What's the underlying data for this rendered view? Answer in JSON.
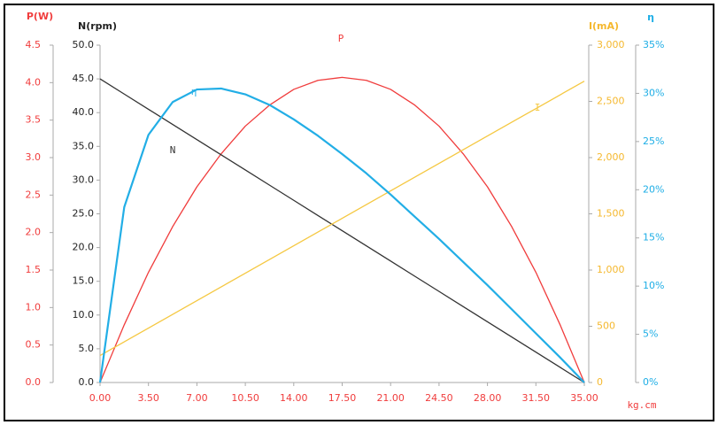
{
  "chart_data": {
    "type": "line",
    "x_label": "kg.cm",
    "x": [
      0,
      1.75,
      3.5,
      5.25,
      7,
      8.75,
      10.5,
      12.25,
      14,
      15.75,
      17.5,
      19.25,
      21,
      22.75,
      24.5,
      26.25,
      28,
      29.75,
      31.5,
      33.25,
      35
    ],
    "xlim": [
      0,
      35
    ],
    "xticks": [
      {
        "value": 0,
        "label": "0.00"
      },
      {
        "value": 3.5,
        "label": "3.50"
      },
      {
        "value": 7,
        "label": "7.00"
      },
      {
        "value": 10.5,
        "label": "10.50"
      },
      {
        "value": 14,
        "label": "14.00"
      },
      {
        "value": 17.5,
        "label": "17.50"
      },
      {
        "value": 21,
        "label": "21.00"
      },
      {
        "value": 24.5,
        "label": "24.50"
      },
      {
        "value": 28,
        "label": "28.00"
      },
      {
        "value": 31.5,
        "label": "31.50"
      },
      {
        "value": 35,
        "label": "35.00"
      }
    ],
    "x_color": "#f03c3c",
    "y_axes": [
      {
        "title": "P(W)",
        "color": "#f03c3c",
        "ylim": [
          0,
          4.5
        ],
        "yticks": [
          {
            "value": 0,
            "label": "0.0"
          },
          0.5,
          {
            "value": 1,
            "label": "1.0"
          },
          1.5,
          {
            "value": 2,
            "label": "2.0"
          },
          2.5,
          {
            "value": 3,
            "label": "3.0"
          },
          3.5,
          {
            "value": 4,
            "label": "4.0"
          },
          4.5
        ]
      },
      {
        "title": "N(rpm)",
        "color": "#222222",
        "ylim": [
          0,
          50
        ],
        "yticks": [
          {
            "value": 0,
            "label": "0.0"
          },
          {
            "value": 5,
            "label": "5.0"
          },
          {
            "value": 10,
            "label": "10.0"
          },
          {
            "value": 15,
            "label": "15.0"
          },
          {
            "value": 20,
            "label": "20.0"
          },
          {
            "value": 25,
            "label": "25.0"
          },
          {
            "value": 30,
            "label": "30.0"
          },
          {
            "value": 35,
            "label": "35.0"
          },
          {
            "value": 40,
            "label": "40.0"
          },
          {
            "value": 45,
            "label": "45.0"
          },
          {
            "value": 50,
            "label": "50.0"
          }
        ]
      },
      {
        "title": "I(mA)",
        "color": "#f5b82e",
        "ylim": [
          0,
          3000
        ],
        "yticks": [
          0,
          500,
          {
            "value": 1000,
            "label": "1,000"
          },
          {
            "value": 1500,
            "label": "1,500"
          },
          {
            "value": 2000,
            "label": "2,000"
          },
          {
            "value": 2500,
            "label": "2,500"
          },
          {
            "value": 3000,
            "label": "3,000"
          }
        ]
      },
      {
        "title": "η",
        "color": "#1eaee6",
        "ylim": [
          0,
          35
        ],
        "yticks": [
          {
            "value": 0,
            "label": "0%"
          },
          {
            "value": 5,
            "label": "5%"
          },
          {
            "value": 10,
            "label": "10%"
          },
          {
            "value": 15,
            "label": "15%"
          },
          {
            "value": 20,
            "label": "20%"
          },
          {
            "value": 25,
            "label": "25%"
          },
          {
            "value": 30,
            "label": "30%"
          },
          {
            "value": 35,
            "label": "35%"
          }
        ]
      }
    ],
    "series": [
      {
        "name": "P",
        "color": "#f03c3c",
        "axis": 0,
        "values": [
          0,
          0.77,
          1.47,
          2.08,
          2.61,
          3.05,
          3.42,
          3.7,
          3.91,
          4.03,
          4.07,
          4.03,
          3.91,
          3.7,
          3.42,
          3.05,
          2.61,
          2.08,
          1.47,
          0.77,
          0
        ]
      },
      {
        "name": "N",
        "color": "#333333",
        "axis": 1,
        "values": [
          45,
          42.75,
          40.5,
          38.25,
          36,
          33.75,
          31.5,
          29.25,
          27,
          24.75,
          22.5,
          20.25,
          18,
          15.75,
          13.5,
          11.25,
          9,
          6.75,
          4.5,
          2.25,
          0
        ]
      },
      {
        "name": "I",
        "color": "#f5c842",
        "axis": 2,
        "values": [
          240,
          362,
          484,
          606,
          728,
          850,
          972,
          1094,
          1216,
          1338,
          1460,
          1582,
          1704,
          1826,
          1948,
          2070,
          2192,
          2314,
          2436,
          2558,
          2680
        ]
      },
      {
        "name": "η",
        "color": "#22aee6",
        "axis": 3,
        "values": [
          0,
          18.2,
          25.7,
          29.1,
          30.4,
          30.5,
          29.9,
          28.8,
          27.3,
          25.6,
          23.7,
          21.7,
          19.5,
          17.2,
          14.9,
          12.5,
          10.1,
          7.6,
          5.1,
          2.6,
          0
        ]
      }
    ]
  }
}
